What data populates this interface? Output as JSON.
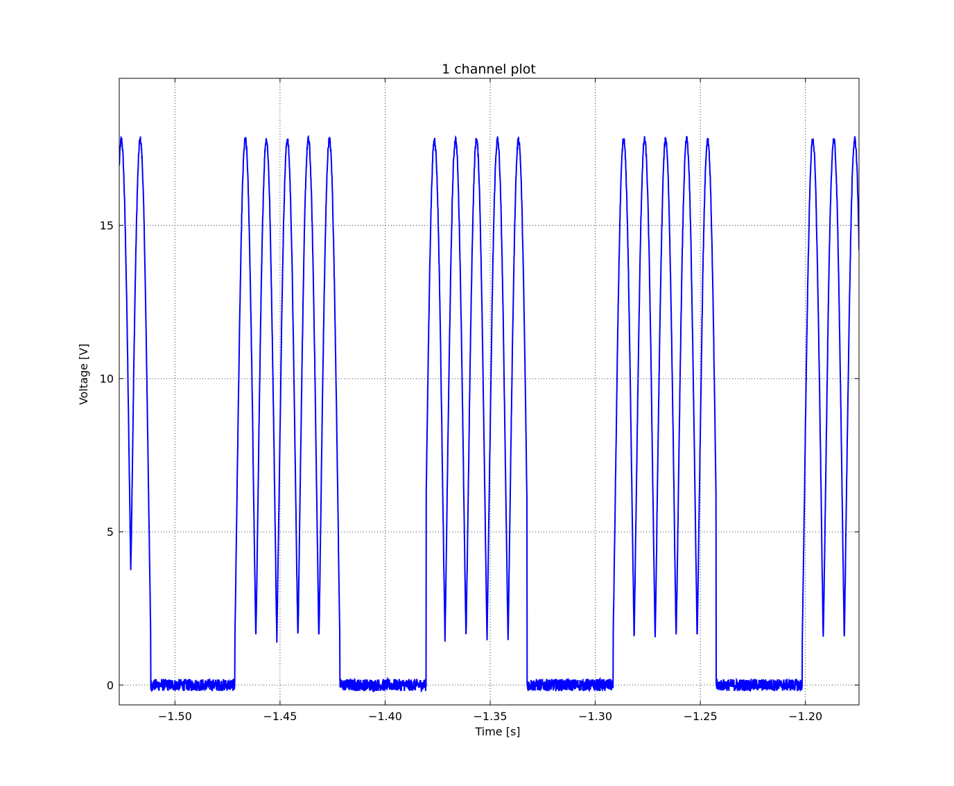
{
  "window": {
    "title": "1 channel plot"
  },
  "colors": {
    "trace": "#0000ff",
    "grid": "#000000",
    "frame": "#000000",
    "background": "#ffffff"
  },
  "chart_data": {
    "type": "line",
    "title": "1 channel plot",
    "xlabel": "Time [s]",
    "ylabel": "Voltage [V]",
    "xlim": [
      -1.5265,
      -1.1745
    ],
    "ylim": [
      -0.65,
      19.8
    ],
    "grid": true,
    "grid_style": "dotted",
    "x_ticks": [
      -1.5,
      -1.45,
      -1.4,
      -1.35,
      -1.3,
      -1.25,
      -1.2
    ],
    "x_tick_labels": [
      "−1.50",
      "−1.45",
      "−1.40",
      "−1.35",
      "−1.30",
      "−1.25",
      "−1.20"
    ],
    "y_ticks": [
      0,
      5,
      10,
      15
    ],
    "y_tick_labels": [
      "0",
      "5",
      "10",
      "15"
    ],
    "series": [
      {
        "color": "#0000ff",
        "baseline_noise_band": [
          -0.2,
          0.2
        ],
        "low_segments": [
          [
            -1.5115,
            -1.4715
          ],
          [
            -1.4215,
            -1.3805
          ],
          [
            -1.3325,
            -1.2915
          ],
          [
            -1.2425,
            -1.2015
          ]
        ],
        "pulse_peaks_x": [
          -1.5255,
          -1.5165,
          -1.4665,
          -1.4565,
          -1.4465,
          -1.4365,
          -1.4265,
          -1.3765,
          -1.3665,
          -1.3565,
          -1.3465,
          -1.3365,
          -1.2865,
          -1.2765,
          -1.2665,
          -1.2565,
          -1.2465,
          -1.1965,
          -1.1865,
          -1.1765
        ],
        "peak_voltage": 17.8,
        "trough_voltage": -0.3,
        "end_x": -1.1745,
        "end_y": 14.2,
        "points": []
      }
    ]
  }
}
